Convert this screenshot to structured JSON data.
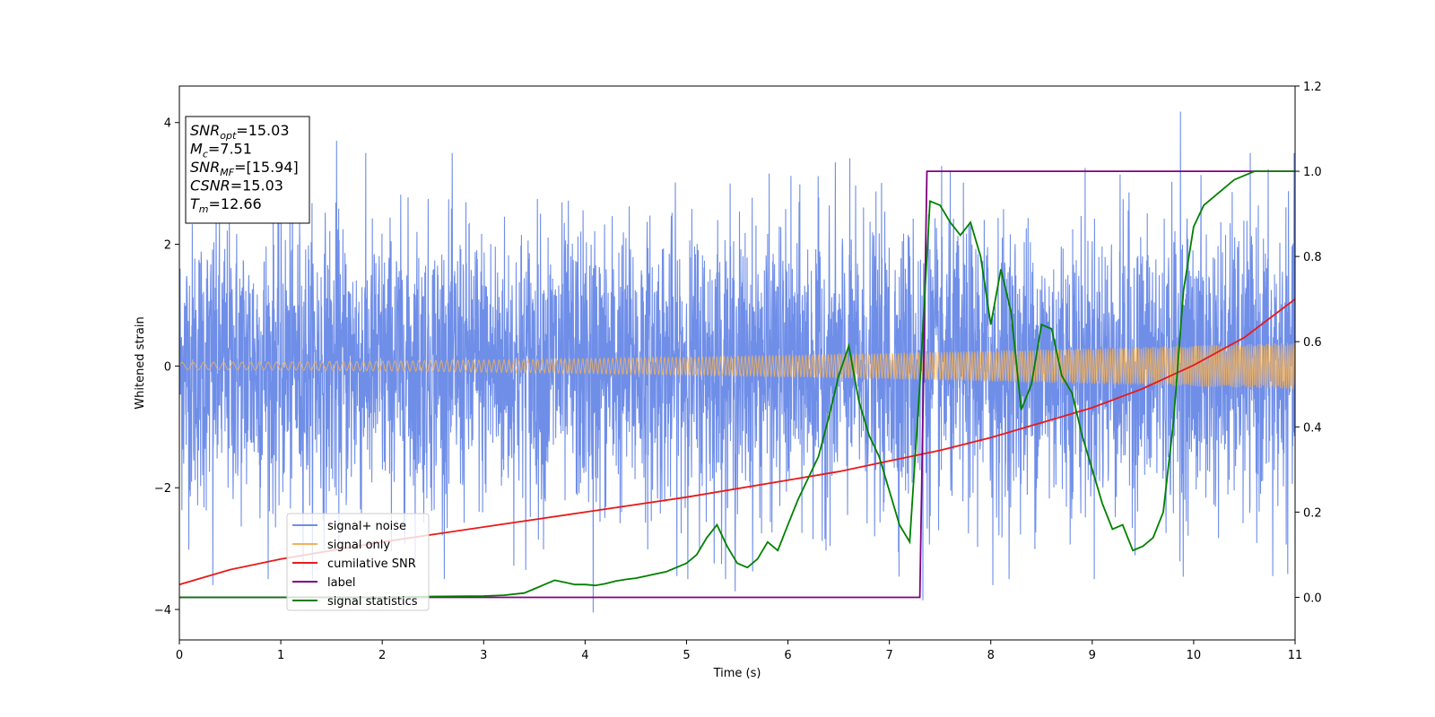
{
  "chart_data": {
    "type": "line",
    "xlabel": "Time (s)",
    "ylabel": "Whitened strain",
    "xlim": [
      0,
      11
    ],
    "ylim": [
      -4.5,
      4.6
    ],
    "y2lim": [
      -0.1,
      1.2
    ],
    "x_ticks": [
      0,
      1,
      2,
      3,
      4,
      5,
      6,
      7,
      8,
      9,
      10,
      11
    ],
    "y_ticks": [
      -4,
      -2,
      0,
      2,
      4
    ],
    "y2_ticks": [
      0.0,
      0.2,
      0.4,
      0.6,
      0.8,
      1.0,
      1.2
    ],
    "x_tick_labels": [
      "0",
      "1",
      "2",
      "3",
      "4",
      "5",
      "6",
      "7",
      "8",
      "9",
      "10",
      "11"
    ],
    "y_tick_labels": [
      "−4",
      "−2",
      "0",
      "2",
      "4"
    ],
    "y2_tick_labels": [
      "0.0",
      "0.2",
      "0.4",
      "0.6",
      "0.8",
      "1.0",
      "1.2"
    ],
    "grid": false,
    "legend_position": "lower-left",
    "annotation": {
      "lines": [
        {
          "base": "SNR",
          "sub": "opt",
          "rest": "=15.03"
        },
        {
          "base": "M",
          "sub": "c",
          "rest": "=7.51"
        },
        {
          "base": "SNR",
          "sub": "MF",
          "rest": "=[15.94]"
        },
        {
          "base": "CSNR",
          "sub": "",
          "rest": "=15.03"
        },
        {
          "base": "T",
          "sub": "m",
          "rest": "=12.66"
        }
      ]
    },
    "series": [
      {
        "name": "signal+ noise",
        "color": "#6f8ee8",
        "axis": "left",
        "kind": "noise",
        "std": 1.15,
        "peaks": [
          [
            4.08,
            -4.05
          ],
          [
            9.87,
            4.18
          ],
          [
            7.33,
            -3.85
          ],
          [
            8.02,
            -3.6
          ],
          [
            5.48,
            -3.7
          ],
          [
            1.55,
            3.7
          ],
          [
            0.33,
            -3.6
          ],
          [
            10.78,
            -3.45
          ]
        ]
      },
      {
        "name": "signal only",
        "color": "#f2b25c",
        "axis": "left",
        "kind": "chirp",
        "amp_start": 0.06,
        "amp_end": 0.38
      },
      {
        "name": "cumilative SNR",
        "color": "#e81a1a",
        "axis": "right",
        "x": [
          0,
          0.5,
          1,
          2,
          3,
          4,
          5,
          6,
          6.5,
          7,
          7.5,
          8,
          8.5,
          9,
          9.5,
          10,
          10.5,
          11
        ],
        "values": [
          0.03,
          0.065,
          0.09,
          0.13,
          0.165,
          0.2,
          0.235,
          0.275,
          0.295,
          0.32,
          0.345,
          0.375,
          0.41,
          0.445,
          0.49,
          0.545,
          0.61,
          0.7
        ]
      },
      {
        "name": "label",
        "color": "#800080",
        "axis": "right",
        "x": [
          0,
          7.3,
          7.37,
          11
        ],
        "values": [
          0.0,
          0.0,
          1.0,
          1.0
        ]
      },
      {
        "name": "signal statistics",
        "color": "#008000",
        "axis": "right",
        "x": [
          0,
          1,
          2,
          2.5,
          3,
          3.2,
          3.4,
          3.5,
          3.6,
          3.7,
          3.8,
          3.9,
          4.0,
          4.1,
          4.2,
          4.3,
          4.4,
          4.5,
          4.6,
          4.7,
          4.8,
          4.9,
          5.0,
          5.1,
          5.2,
          5.3,
          5.4,
          5.5,
          5.6,
          5.7,
          5.8,
          5.9,
          6.0,
          6.1,
          6.2,
          6.3,
          6.4,
          6.5,
          6.6,
          6.7,
          6.8,
          6.9,
          7.0,
          7.1,
          7.2,
          7.3,
          7.4,
          7.5,
          7.6,
          7.7,
          7.8,
          7.9,
          8.0,
          8.1,
          8.2,
          8.3,
          8.4,
          8.5,
          8.6,
          8.7,
          8.8,
          8.9,
          9.0,
          9.1,
          9.2,
          9.3,
          9.4,
          9.5,
          9.6,
          9.7,
          9.8,
          9.9,
          10.0,
          10.1,
          10.2,
          10.3,
          10.4,
          10.5,
          10.6,
          10.7,
          10.8,
          10.9,
          11.0
        ],
        "values": [
          0.0,
          0.0,
          0.0,
          0.002,
          0.003,
          0.005,
          0.01,
          0.02,
          0.03,
          0.04,
          0.035,
          0.03,
          0.03,
          0.028,
          0.032,
          0.038,
          0.042,
          0.045,
          0.05,
          0.055,
          0.06,
          0.07,
          0.08,
          0.1,
          0.14,
          0.17,
          0.12,
          0.08,
          0.07,
          0.09,
          0.13,
          0.11,
          0.17,
          0.23,
          0.28,
          0.33,
          0.42,
          0.52,
          0.59,
          0.46,
          0.38,
          0.33,
          0.25,
          0.17,
          0.13,
          0.5,
          0.93,
          0.92,
          0.88,
          0.85,
          0.88,
          0.8,
          0.64,
          0.77,
          0.67,
          0.44,
          0.5,
          0.64,
          0.63,
          0.52,
          0.48,
          0.38,
          0.3,
          0.22,
          0.16,
          0.17,
          0.11,
          0.12,
          0.14,
          0.2,
          0.41,
          0.72,
          0.87,
          0.92,
          0.94,
          0.96,
          0.98,
          0.99,
          1.0,
          1.0,
          1.0,
          1.0,
          1.0
        ]
      }
    ]
  }
}
